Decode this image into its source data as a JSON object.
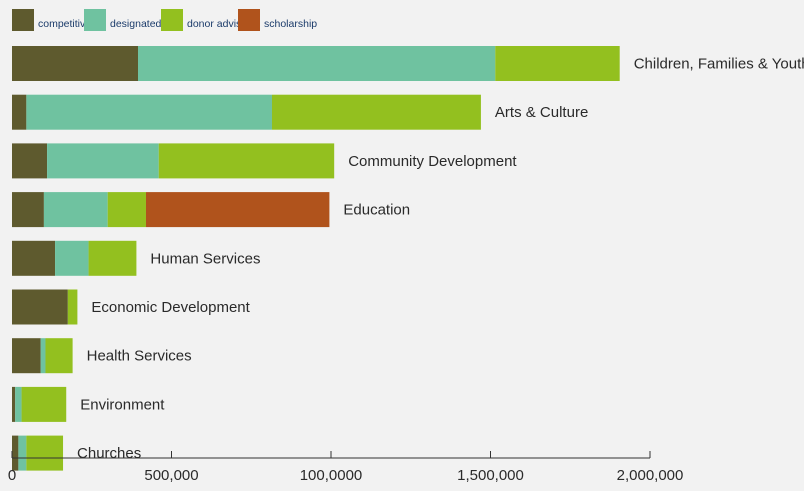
{
  "chart_data": {
    "type": "bar",
    "orientation": "horizontal",
    "stacked": true,
    "title": "",
    "xlabel": "",
    "ylabel": "",
    "categories": [
      "Children, Families & Youth",
      "Arts & Culture",
      "Community Development",
      "Education",
      "Human Services",
      "Economic Development",
      "Health Services",
      "Environment",
      "Churches"
    ],
    "series": [
      {
        "name": "competitive",
        "color": "#5e5a2e",
        "values": [
          395000,
          45000,
          110000,
          100000,
          135000,
          175000,
          90000,
          10000,
          20000
        ]
      },
      {
        "name": "designated",
        "color": "#6fc2a0",
        "values": [
          1120000,
          770000,
          350000,
          200000,
          105000,
          0,
          15000,
          20000,
          25000
        ]
      },
      {
        "name": "donor advised",
        "color": "#93c01f",
        "values": [
          390000,
          655000,
          550000,
          120000,
          150000,
          30000,
          85000,
          140000,
          115000
        ]
      },
      {
        "name": "scholarship",
        "color": "#b0531c",
        "values": [
          0,
          0,
          0,
          575000,
          0,
          0,
          0,
          0,
          0
        ]
      }
    ],
    "xlim": [
      0,
      2000000
    ],
    "xticks": [
      0,
      500000,
      1000000,
      1500000,
      2000000
    ],
    "xtick_labels": [
      "0",
      "500,000",
      "100,0000",
      "1,500,000",
      "2,000,000"
    ],
    "legend_position": "top-left",
    "grid": false
  }
}
